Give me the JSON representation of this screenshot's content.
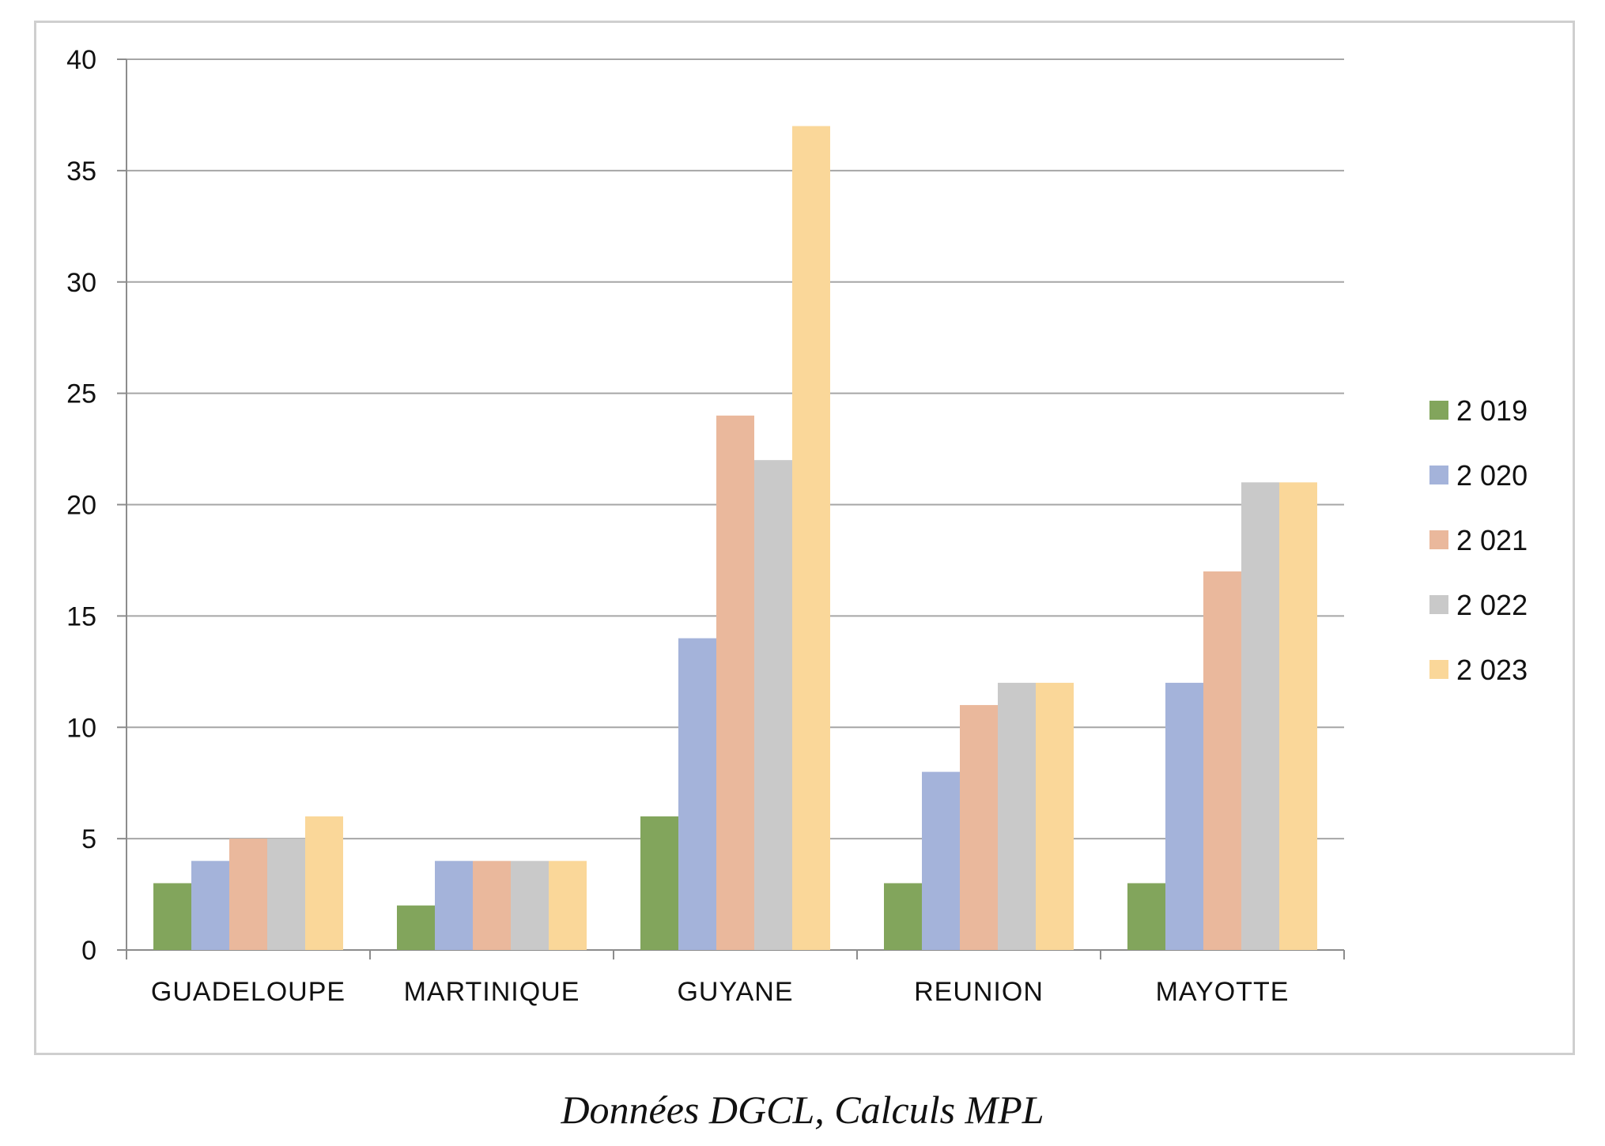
{
  "caption": "Données DGCL, Calculs MPL",
  "chart_data": {
    "type": "bar",
    "title": "",
    "xlabel": "",
    "ylabel": "",
    "ylim": [
      0,
      40
    ],
    "yticks": [
      0,
      5,
      10,
      15,
      20,
      25,
      30,
      35,
      40
    ],
    "grid": true,
    "legend_position": "right",
    "categories": [
      "GUADELOUPE",
      "MARTINIQUE",
      "GUYANE",
      "REUNION",
      "MAYOTTE"
    ],
    "series": [
      {
        "name": "2 019",
        "color": "#82a55c",
        "values": [
          3,
          2,
          6,
          3,
          3
        ]
      },
      {
        "name": "2 020",
        "color": "#a4b3da",
        "values": [
          4,
          4,
          14,
          8,
          12
        ]
      },
      {
        "name": "2 021",
        "color": "#eab89c",
        "values": [
          5,
          4,
          24,
          11,
          17
        ]
      },
      {
        "name": "2 022",
        "color": "#c9c9c9",
        "values": [
          5,
          4,
          22,
          12,
          21
        ]
      },
      {
        "name": "2 023",
        "color": "#fad799",
        "values": [
          6,
          4,
          37,
          12,
          21
        ]
      }
    ]
  }
}
